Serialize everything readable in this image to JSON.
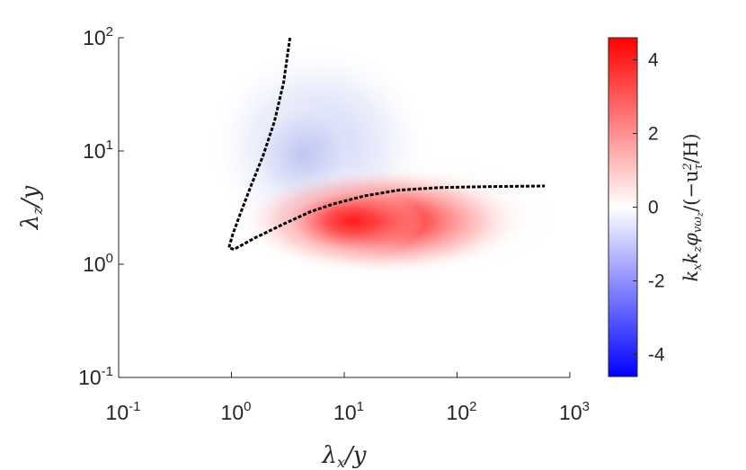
{
  "chart_data": {
    "type": "heatmap",
    "xlabel": {
      "main": "λ",
      "sub": "x",
      "rest": "/y"
    },
    "ylabel": {
      "main": "λ",
      "sub": "z",
      "rest": "/y"
    },
    "colorbar_label": {
      "k1": "k",
      "k1_sub": "x",
      "k2": "k",
      "k2_sub": "z",
      "phi": "φ",
      "phi_sub": "vω",
      "phi_subsub": "z",
      "denom_open": "/(−u",
      "tau": "τ",
      "sq": "2",
      "denom_close": "/H)"
    },
    "x_scale": "log",
    "y_scale": "log",
    "xlim": [
      0.1,
      1000
    ],
    "ylim": [
      0.1,
      100
    ],
    "x_ticks": [
      {
        "value": 0.1,
        "base": "10",
        "exp": "-1"
      },
      {
        "value": 1,
        "base": "10",
        "exp": "0"
      },
      {
        "value": 10,
        "base": "10",
        "exp": "1"
      },
      {
        "value": 100,
        "base": "10",
        "exp": "2"
      },
      {
        "value": 1000,
        "base": "10",
        "exp": "3"
      }
    ],
    "y_ticks": [
      {
        "value": 0.1,
        "base": "10",
        "exp": "-1"
      },
      {
        "value": 1,
        "base": "10",
        "exp": "0"
      },
      {
        "value": 10,
        "base": "10",
        "exp": "1"
      },
      {
        "value": 100,
        "base": "10",
        "exp": "2"
      }
    ],
    "colorbar": {
      "range": [
        -4.6,
        4.6
      ],
      "ticks": [
        {
          "value": 4,
          "label": "4"
        },
        {
          "value": 2,
          "label": "2"
        },
        {
          "value": 0,
          "label": "0"
        },
        {
          "value": -2,
          "label": "-2"
        },
        {
          "value": -4,
          "label": "-4"
        }
      ],
      "colors": {
        "negative": "#0000ff",
        "zero": "#ffffff",
        "positive": "#ff0000"
      }
    },
    "contour_color": "#000000",
    "contour": [
      [
        3.3,
        100
      ],
      [
        2.9,
        40
      ],
      [
        2.4,
        18
      ],
      [
        1.9,
        9
      ],
      [
        1.5,
        5
      ],
      [
        1.2,
        2.8
      ],
      [
        1.02,
        1.8
      ],
      [
        0.95,
        1.4
      ],
      [
        1.05,
        1.35
      ],
      [
        1.6,
        1.7
      ],
      [
        3,
        2.3
      ],
      [
        5,
        2.9
      ],
      [
        8,
        3.4
      ],
      [
        15,
        4.0
      ],
      [
        30,
        4.5
      ],
      [
        70,
        4.75
      ],
      [
        200,
        4.85
      ],
      [
        600,
        4.9
      ]
    ],
    "positive_region": {
      "peak_value": 4.5,
      "peak_x": 12,
      "peak_y": 2.4,
      "x_range": [
        3,
        600
      ],
      "y_range": [
        0.8,
        7
      ]
    },
    "negative_region": {
      "min_value": -0.8,
      "peak_x": 5,
      "peak_y": 10,
      "x_range": [
        1.2,
        600
      ],
      "y_range": [
        0.8,
        100
      ]
    }
  }
}
